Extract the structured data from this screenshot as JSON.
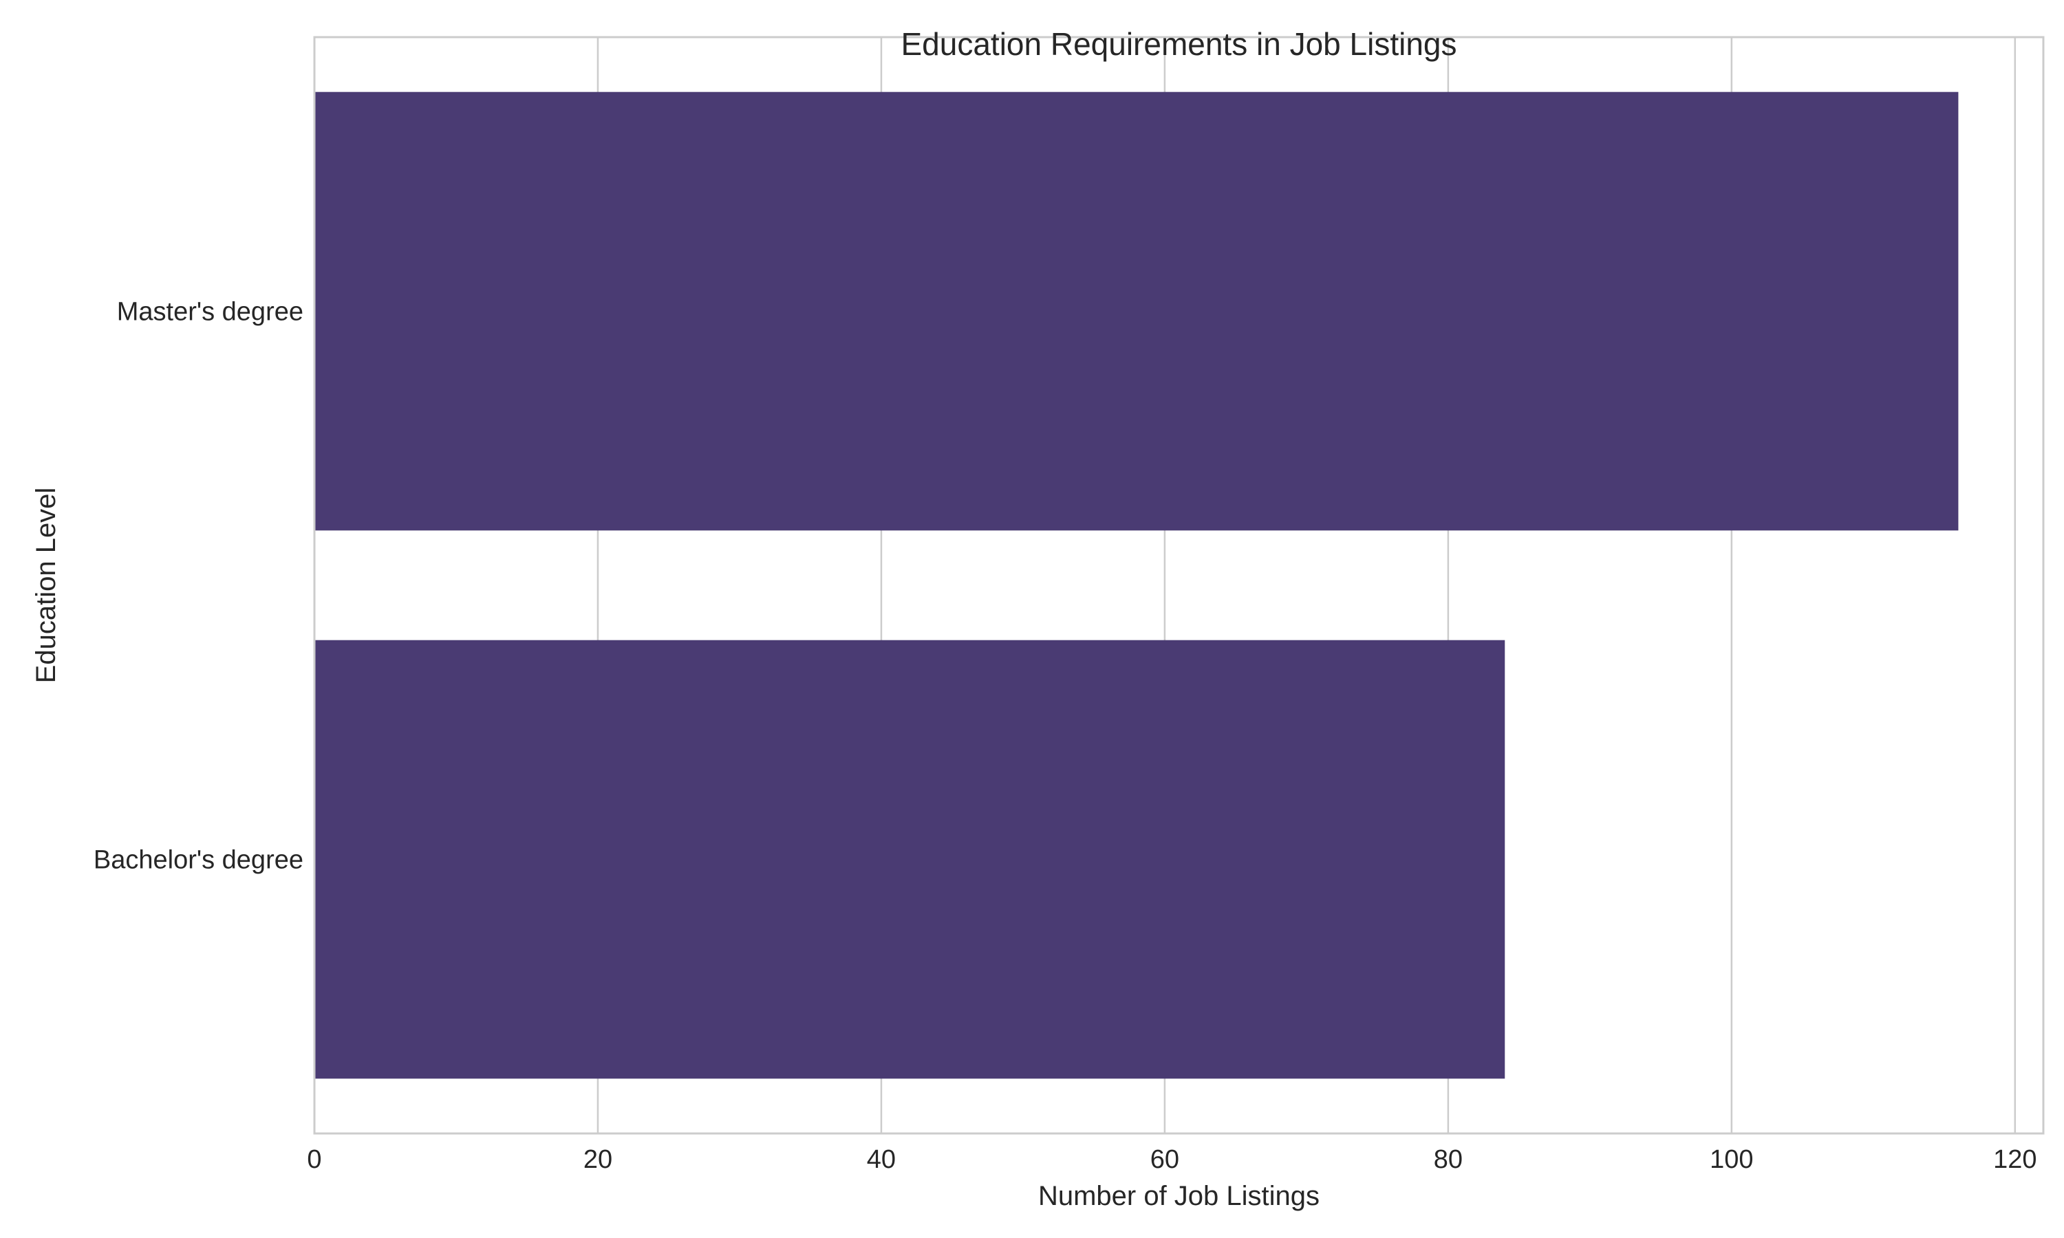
{
  "chart_data": {
    "type": "bar",
    "orientation": "horizontal",
    "title": "Education Requirements in Job Listings",
    "xlabel": "Number of Job Listings",
    "ylabel": "Education Level",
    "categories": [
      "Master's degree",
      "Bachelor's degree"
    ],
    "values": [
      116,
      84
    ],
    "xlim": [
      0,
      122
    ],
    "xticks": [
      0,
      20,
      40,
      60,
      80,
      100,
      120
    ],
    "grid": true,
    "bar_color": "#4a3b73"
  }
}
